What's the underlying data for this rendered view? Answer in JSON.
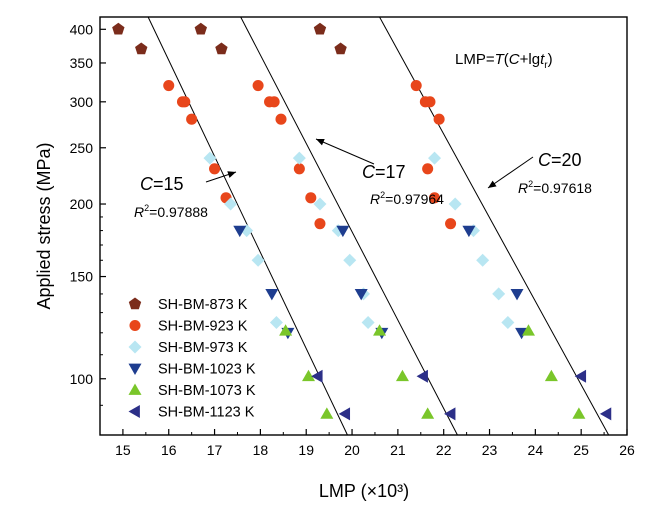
{
  "chart_data": {
    "type": "scatter",
    "title": "",
    "xlabel": "LMP (×10³)",
    "ylabel": "Applied stress (MPa)",
    "xlim": [
      14.5,
      26
    ],
    "ylim": [
      80,
      420
    ],
    "yscale": "log",
    "x_ticks": [
      "15",
      "16",
      "17",
      "18",
      "19",
      "20",
      "21",
      "22",
      "23",
      "24",
      "25",
      "26"
    ],
    "y_ticks": [
      {
        "value": 100,
        "label": "100"
      },
      {
        "value": 150,
        "label": "150"
      },
      {
        "value": 200,
        "label": "200"
      },
      {
        "value": 250,
        "label": "250"
      },
      {
        "value": 300,
        "label": "300"
      },
      {
        "value": 350,
        "label": "350"
      },
      {
        "value": 400,
        "label": "400"
      }
    ],
    "equation": {
      "prefix": "LMP=",
      "T": "T",
      "open": "(",
      "C": "C",
      "plus": "+lg",
      "t": "t",
      "sub": "r",
      "close": ")"
    },
    "fits": [
      {
        "C": "15",
        "r2": "=0.97888",
        "line": [
          [
            15.55,
            420
          ],
          [
            19.9,
            80
          ]
        ]
      },
      {
        "C": "17",
        "r2": "=0.97964",
        "line": [
          [
            17.57,
            420
          ],
          [
            22.3,
            80
          ]
        ]
      },
      {
        "C": "20",
        "r2": "=0.97618",
        "line": [
          [
            20.6,
            420
          ],
          [
            25.6,
            80
          ]
        ]
      }
    ],
    "series": [
      {
        "name": "SH-BM-873 K",
        "marker": "pentagon",
        "color": "#7b2c1b",
        "points": [
          [
            14.9,
            400
          ],
          [
            15.4,
            370
          ],
          [
            16.7,
            400
          ],
          [
            17.15,
            370
          ],
          [
            19.3,
            400
          ],
          [
            19.75,
            370
          ]
        ]
      },
      {
        "name": "SH-BM-923 K",
        "marker": "circle",
        "color": "#e8461b",
        "points": [
          [
            16.0,
            320
          ],
          [
            16.35,
            300
          ],
          [
            16.5,
            280
          ],
          [
            16.3,
            300
          ],
          [
            17.0,
            230
          ],
          [
            17.25,
            205
          ],
          [
            17.95,
            320
          ],
          [
            18.3,
            300
          ],
          [
            18.2,
            300
          ],
          [
            18.45,
            280
          ],
          [
            18.85,
            230
          ],
          [
            19.1,
            205
          ],
          [
            19.3,
            185
          ],
          [
            21.4,
            320
          ],
          [
            21.7,
            300
          ],
          [
            21.6,
            300
          ],
          [
            21.9,
            280
          ],
          [
            21.65,
            230
          ],
          [
            21.8,
            205
          ],
          [
            22.15,
            185
          ]
        ]
      },
      {
        "name": "SH-BM-973 K",
        "marker": "diamond",
        "color": "#b8e6f2",
        "points": [
          [
            16.9,
            240
          ],
          [
            17.35,
            200
          ],
          [
            17.7,
            180
          ],
          [
            17.95,
            160
          ],
          [
            18.35,
            125
          ],
          [
            18.85,
            240
          ],
          [
            19.3,
            200
          ],
          [
            19.7,
            180
          ],
          [
            19.95,
            160
          ],
          [
            20.25,
            140
          ],
          [
            20.35,
            125
          ],
          [
            21.8,
            240
          ],
          [
            22.25,
            200
          ],
          [
            22.65,
            180
          ],
          [
            22.85,
            160
          ],
          [
            23.2,
            140
          ],
          [
            23.4,
            125
          ]
        ]
      },
      {
        "name": "SH-BM-1023 K",
        "marker": "triangle-down",
        "color": "#1e3d8f",
        "points": [
          [
            17.55,
            180
          ],
          [
            18.25,
            140
          ],
          [
            18.6,
            120
          ],
          [
            19.8,
            180
          ],
          [
            20.2,
            140
          ],
          [
            20.65,
            120
          ],
          [
            22.55,
            180
          ],
          [
            23.6,
            140
          ],
          [
            23.7,
            120
          ]
        ]
      },
      {
        "name": "SH-BM-1073 K",
        "marker": "triangle-up",
        "color": "#7ac62a",
        "points": [
          [
            18.55,
            121
          ],
          [
            19.05,
            101
          ],
          [
            19.45,
            87
          ],
          [
            20.6,
            121
          ],
          [
            21.1,
            101
          ],
          [
            21.65,
            87
          ],
          [
            23.85,
            121
          ],
          [
            24.35,
            101
          ],
          [
            24.95,
            87
          ]
        ]
      },
      {
        "name": "SH-BM-1123 K",
        "marker": "triangle-left",
        "color": "#2c2f88",
        "points": [
          [
            19.25,
            101
          ],
          [
            19.85,
            87
          ],
          [
            21.55,
            101
          ],
          [
            22.15,
            87
          ],
          [
            25.0,
            101
          ],
          [
            25.55,
            87
          ]
        ]
      }
    ]
  }
}
